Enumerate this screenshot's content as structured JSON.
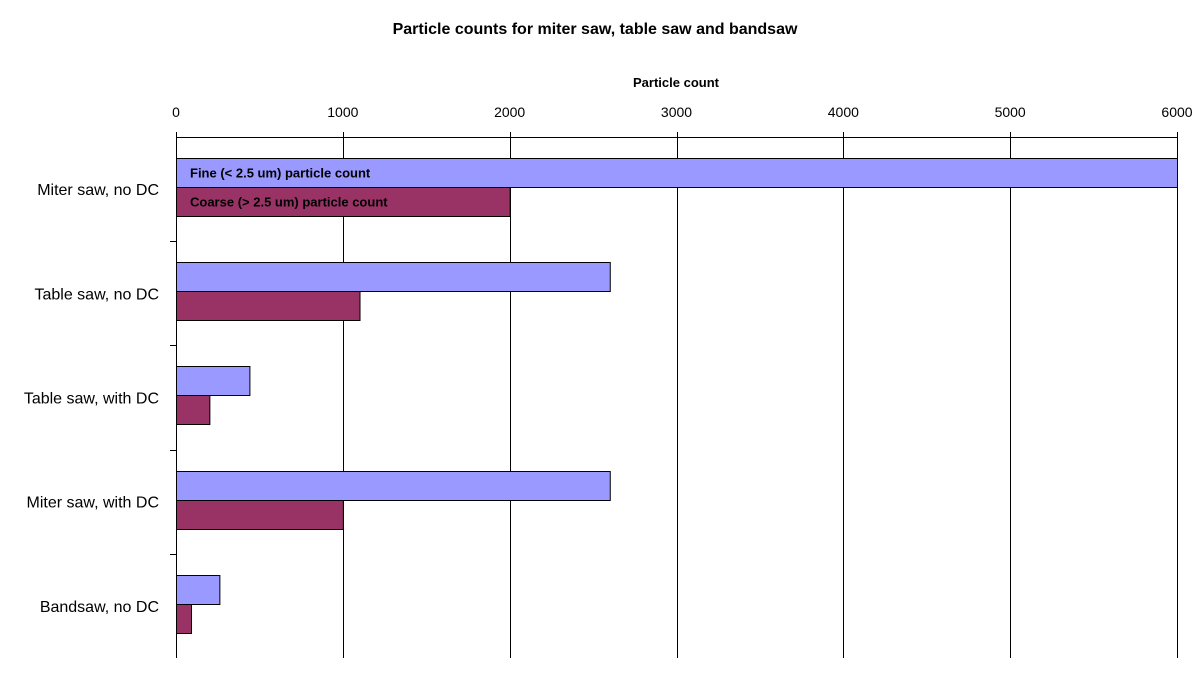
{
  "chart_data": {
    "type": "bar",
    "orientation": "horizontal",
    "title": "Particle counts for miter saw, table saw and bandsaw",
    "xlabel": "Particle count",
    "ylabel": "",
    "xlim": [
      0,
      6000
    ],
    "x_ticks": [
      "0",
      "1000",
      "2000",
      "3000",
      "4000",
      "5000",
      "6000"
    ],
    "x_axis_position": "top",
    "grid": "vertical",
    "legend": "inline labels inside first category bars",
    "categories": [
      "Miter saw, no DC",
      "Table saw, no DC",
      "Table saw, with DC",
      "Miter saw, with DC",
      "Bandsaw, no DC"
    ],
    "series": [
      {
        "name": "Fine (< 2.5 um) particle count",
        "color": "#9999FF",
        "values": [
          6000,
          2600,
          440,
          2600,
          260
        ]
      },
      {
        "name": "Coarse (> 2.5 um) particle count",
        "color": "#993366",
        "values": [
          2000,
          1100,
          200,
          1000,
          90
        ]
      }
    ]
  }
}
